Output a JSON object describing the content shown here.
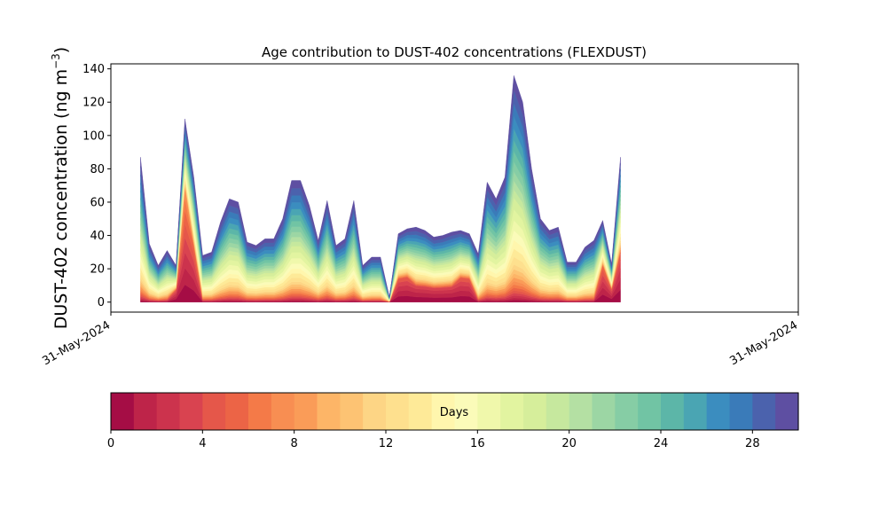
{
  "chart_data": {
    "type": "area",
    "title": "Age contribution to DUST-402 concentrations (FLEXDUST)",
    "ylabel": "DUST-402 concentration (ng m",
    "ylabel_sup": "−3",
    "ylabel_close": ")",
    "xlabel": "",
    "ylim": [
      -6,
      143
    ],
    "yticks": [
      0,
      20,
      40,
      60,
      80,
      100,
      120,
      140
    ],
    "x_tick_labels": [
      "31-May-2024",
      "31-May-2024"
    ],
    "x_unit": "sample index (time across the period)",
    "x": [
      0,
      1,
      2,
      3,
      4,
      5,
      6,
      7,
      8,
      9,
      10,
      11,
      12,
      13,
      14,
      15,
      16,
      17,
      18,
      19,
      20,
      21,
      22,
      23,
      24,
      25,
      26,
      27,
      28,
      29,
      30,
      31,
      32,
      33,
      34,
      35,
      36,
      37,
      38,
      39,
      40,
      41,
      42,
      43,
      44,
      45,
      46,
      47,
      48,
      49,
      50,
      51,
      52,
      53,
      54,
      55,
      56,
      57,
      58,
      59,
      60,
      61,
      62,
      63,
      64,
      65,
      66,
      67,
      68
    ],
    "xlim": [
      -3.33,
      74
    ],
    "total": [
      87,
      35,
      22,
      31,
      22,
      110,
      75,
      28,
      30,
      48,
      62,
      60,
      36,
      34,
      38,
      38,
      50,
      73,
      73,
      58,
      37,
      61,
      34,
      38,
      61,
      22,
      27,
      27,
      3,
      41,
      44,
      45,
      43,
      39,
      40,
      42,
      43,
      41,
      29,
      72,
      62,
      75,
      136,
      120,
      80,
      50,
      43,
      45,
      24,
      24,
      33,
      37,
      49,
      23,
      87,
      0,
      0,
      0,
      0,
      0,
      0,
      0,
      0,
      0,
      0,
      0,
      0,
      0,
      0
    ],
    "n_points": 55,
    "categories": [
      "0–1",
      "1–2",
      "2–3",
      "3–4",
      "4–5",
      "5–6",
      "6–7",
      "7–8",
      "8–9",
      "9–10",
      "10–11",
      "11–12",
      "12–13",
      "13–14",
      "14–15",
      "15–16",
      "16–17",
      "17–18",
      "18–19",
      "19–20",
      "20–21",
      "21–22",
      "22–23",
      "23–24",
      "24–25",
      "25–26",
      "26–27",
      "27–28",
      "28–29",
      "29–30"
    ],
    "colorbar": {
      "label": "Days",
      "range": [
        0,
        30
      ],
      "ticks": [
        0,
        4,
        8,
        12,
        16,
        20,
        24,
        28
      ],
      "colors": [
        "#a50d45",
        "#be2449",
        "#cc334d",
        "#d94350",
        "#e5574a",
        "#ec6446",
        "#f47a48",
        "#f88e52",
        "#fa9c58",
        "#fdb567",
        "#fdc373",
        "#fdd585",
        "#fee08e",
        "#feea98",
        "#fff6ad",
        "#fbfbb9",
        "#f0f8ab",
        "#e2f4a0",
        "#d6ee9b",
        "#c6e89e",
        "#b4e0a3",
        "#9cd6a4",
        "#86cda5",
        "#71c4a4",
        "#5cb6a8",
        "#4aa5b3",
        "#3b8dbf",
        "#3a7bb9",
        "#4b62ad",
        "#5e4fa2"
      ]
    }
  }
}
